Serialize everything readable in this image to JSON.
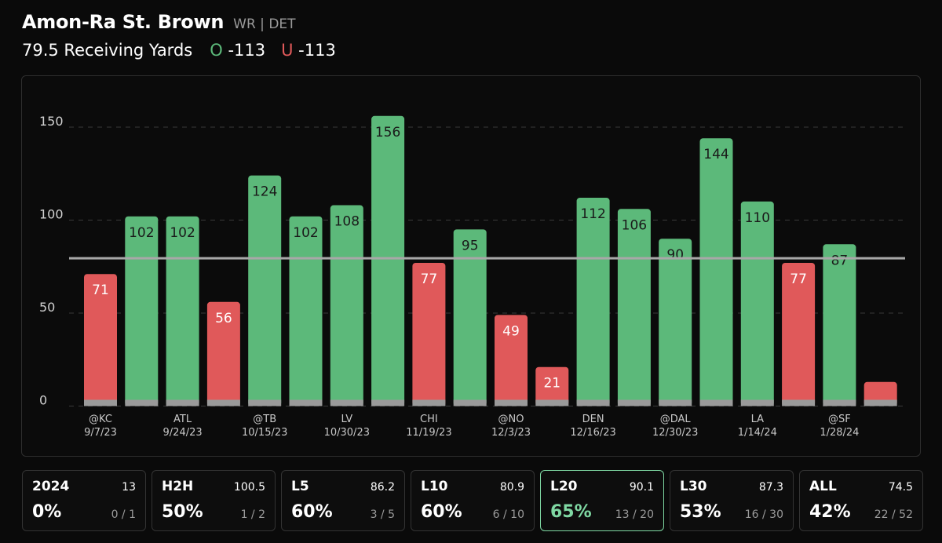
{
  "header": {
    "player_name": "Amon-Ra St. Brown",
    "player_meta": "WR | DET",
    "prop_text": "79.5 Receiving Yards",
    "over_letter": "O",
    "over_odds": "-113",
    "under_letter": "U",
    "under_odds": "-113"
  },
  "colors": {
    "over": "#5cb97a",
    "under": "#e0595a",
    "line": "#a8a8a8",
    "base": "#9a9a9a",
    "active_border": "#7fd8a3"
  },
  "chart_data": {
    "type": "bar",
    "title": "",
    "xlabel": "",
    "ylabel": "",
    "ylim": [
      0,
      165
    ],
    "yticks": [
      0,
      50,
      100,
      150
    ],
    "line_value": 79.5,
    "grid": true,
    "values": [
      71,
      102,
      102,
      56,
      124,
      102,
      108,
      156,
      77,
      95,
      49,
      21,
      112,
      106,
      90,
      144,
      110,
      77,
      87,
      13
    ],
    "value_labels": [
      "71",
      "102",
      "102",
      "56",
      "124",
      "102",
      "108",
      "156",
      "77",
      "95",
      "49",
      "21",
      "112",
      "106",
      "90",
      "144",
      "110",
      "77",
      "87",
      ""
    ],
    "x_labels": [
      {
        "bar": 0,
        "opp": "@KC",
        "date": "9/7/23"
      },
      {
        "bar": 2,
        "opp": "ATL",
        "date": "9/24/23"
      },
      {
        "bar": 4,
        "opp": "@TB",
        "date": "10/15/23"
      },
      {
        "bar": 6,
        "opp": "LV",
        "date": "10/30/23"
      },
      {
        "bar": 8,
        "opp": "CHI",
        "date": "11/19/23"
      },
      {
        "bar": 10,
        "opp": "@NO",
        "date": "12/3/23"
      },
      {
        "bar": 12,
        "opp": "DEN",
        "date": "12/16/23"
      },
      {
        "bar": 14,
        "opp": "@DAL",
        "date": "12/30/23"
      },
      {
        "bar": 16,
        "opp": "LA",
        "date": "1/14/24"
      },
      {
        "bar": 18,
        "opp": "@SF",
        "date": "1/28/24"
      }
    ]
  },
  "stats": [
    {
      "label": "2024",
      "avg": "13",
      "pct": "0%",
      "record": "0 / 1",
      "active": false
    },
    {
      "label": "H2H",
      "avg": "100.5",
      "pct": "50%",
      "record": "1 / 2",
      "active": false
    },
    {
      "label": "L5",
      "avg": "86.2",
      "pct": "60%",
      "record": "3 / 5",
      "active": false
    },
    {
      "label": "L10",
      "avg": "80.9",
      "pct": "60%",
      "record": "6 / 10",
      "active": false
    },
    {
      "label": "L20",
      "avg": "90.1",
      "pct": "65%",
      "record": "13 / 20",
      "active": true
    },
    {
      "label": "L30",
      "avg": "87.3",
      "pct": "53%",
      "record": "16 / 30",
      "active": false
    },
    {
      "label": "ALL",
      "avg": "74.5",
      "pct": "42%",
      "record": "22 / 52",
      "active": false
    }
  ]
}
